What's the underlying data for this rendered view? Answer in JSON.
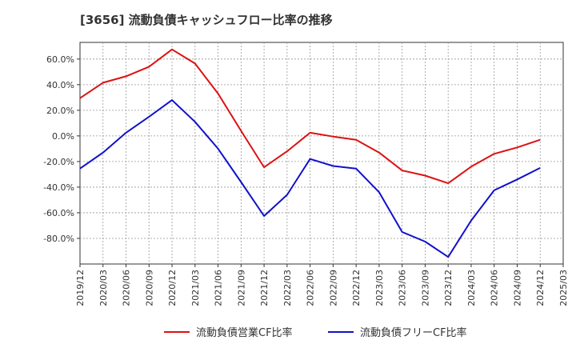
{
  "chart_data": {
    "type": "line",
    "title": "[3656]  流動負債キャッシュフロー比率の推移",
    "xlabel": "",
    "ylabel": "",
    "ylim": [
      -100,
      73
    ],
    "yticks": [
      60,
      40,
      20,
      0,
      -20,
      -40,
      -60,
      -80
    ],
    "ytick_labels": [
      "60.0%",
      "40.0%",
      "20.0%",
      "0.0%",
      "-20.0%",
      "-40.0%",
      "-60.0%",
      "-80.0%"
    ],
    "x": [
      "2019/12",
      "2020/03",
      "2020/06",
      "2020/09",
      "2020/12",
      "2021/03",
      "2021/06",
      "2021/09",
      "2021/12",
      "2022/03",
      "2022/06",
      "2022/09",
      "2022/12",
      "2023/03",
      "2023/06",
      "2023/09",
      "2023/12",
      "2024/03",
      "2024/06",
      "2024/09",
      "2024/12",
      "2025/03"
    ],
    "grid": true,
    "legend_position": "bottom",
    "series": [
      {
        "name": "流動負債営業CF比率",
        "color": "#dd1111",
        "values": [
          29.5,
          41.5,
          46.5,
          54,
          67.5,
          56.5,
          33,
          4,
          -24.5,
          -12,
          2.5,
          -0.5,
          -3,
          -13,
          -27,
          -31,
          -37,
          -24,
          -14,
          -9,
          -3,
          null
        ]
      },
      {
        "name": "流動負債フリーCF比率",
        "color": "#1111cc",
        "values": [
          -25.5,
          -13,
          2.5,
          15,
          28,
          11,
          -10,
          -36,
          -62.5,
          -46,
          -18,
          -23.5,
          -25.5,
          -44,
          -75,
          -82.5,
          -94.5,
          -66,
          -42.5,
          -34,
          -25,
          null
        ]
      }
    ]
  }
}
